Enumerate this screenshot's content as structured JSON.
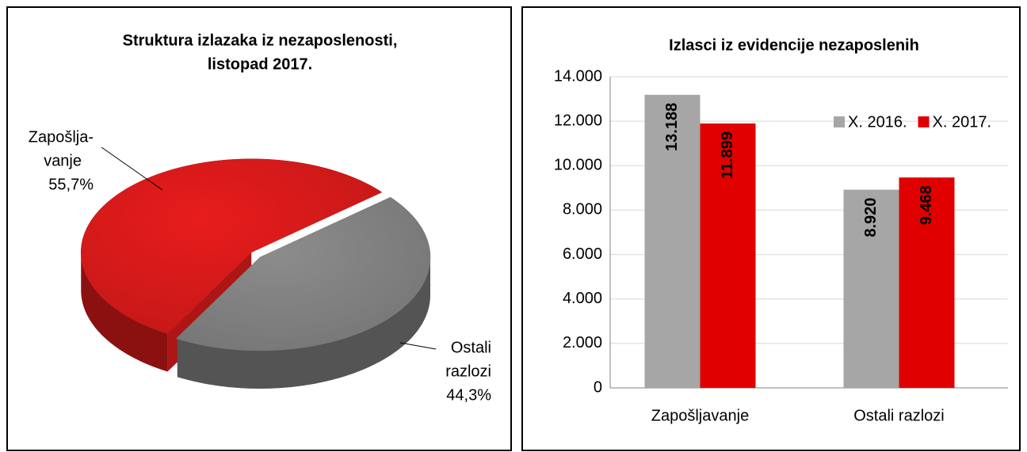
{
  "chart_data": [
    {
      "type": "pie",
      "title": [
        "Struktura izlazaka iz nezaposlenosti,",
        "listopad 2017."
      ],
      "categories": [
        [
          "Zapošlja-",
          "vanje"
        ],
        [
          "Ostali",
          "razlozi"
        ]
      ],
      "values": [
        55.7,
        44.3
      ],
      "value_labels": [
        "55,7%",
        "44,3%"
      ],
      "colors": [
        "#e81c1c",
        "#8c8c8c"
      ]
    },
    {
      "type": "bar",
      "title": "Izlasci iz evidencije nezaposlenih",
      "categories": [
        "Zapošljavanje",
        "Ostali razlozi"
      ],
      "series": [
        {
          "name": "X. 2016.",
          "color": "#a6a6a6",
          "values": [
            13188,
            8920
          ],
          "value_labels": [
            "13.188",
            "8.920"
          ]
        },
        {
          "name": "X. 2017.",
          "color": "#e00000",
          "values": [
            11899,
            9468
          ],
          "value_labels": [
            "11.899",
            "9.468"
          ]
        }
      ],
      "ylim": [
        0,
        14000
      ],
      "yticks": [
        0,
        {
          "value": 2000,
          "label": "2.000"
        },
        {
          "value": 4000,
          "label": "4.000"
        },
        {
          "value": 6000,
          "label": "6.000"
        },
        {
          "value": 8000,
          "label": "8.000"
        },
        {
          "value": 10000,
          "label": "10.000"
        },
        {
          "value": 12000,
          "label": "12.000"
        },
        {
          "value": 14000,
          "label": "14.000"
        }
      ],
      "grid": true,
      "legend": "top-right"
    }
  ]
}
